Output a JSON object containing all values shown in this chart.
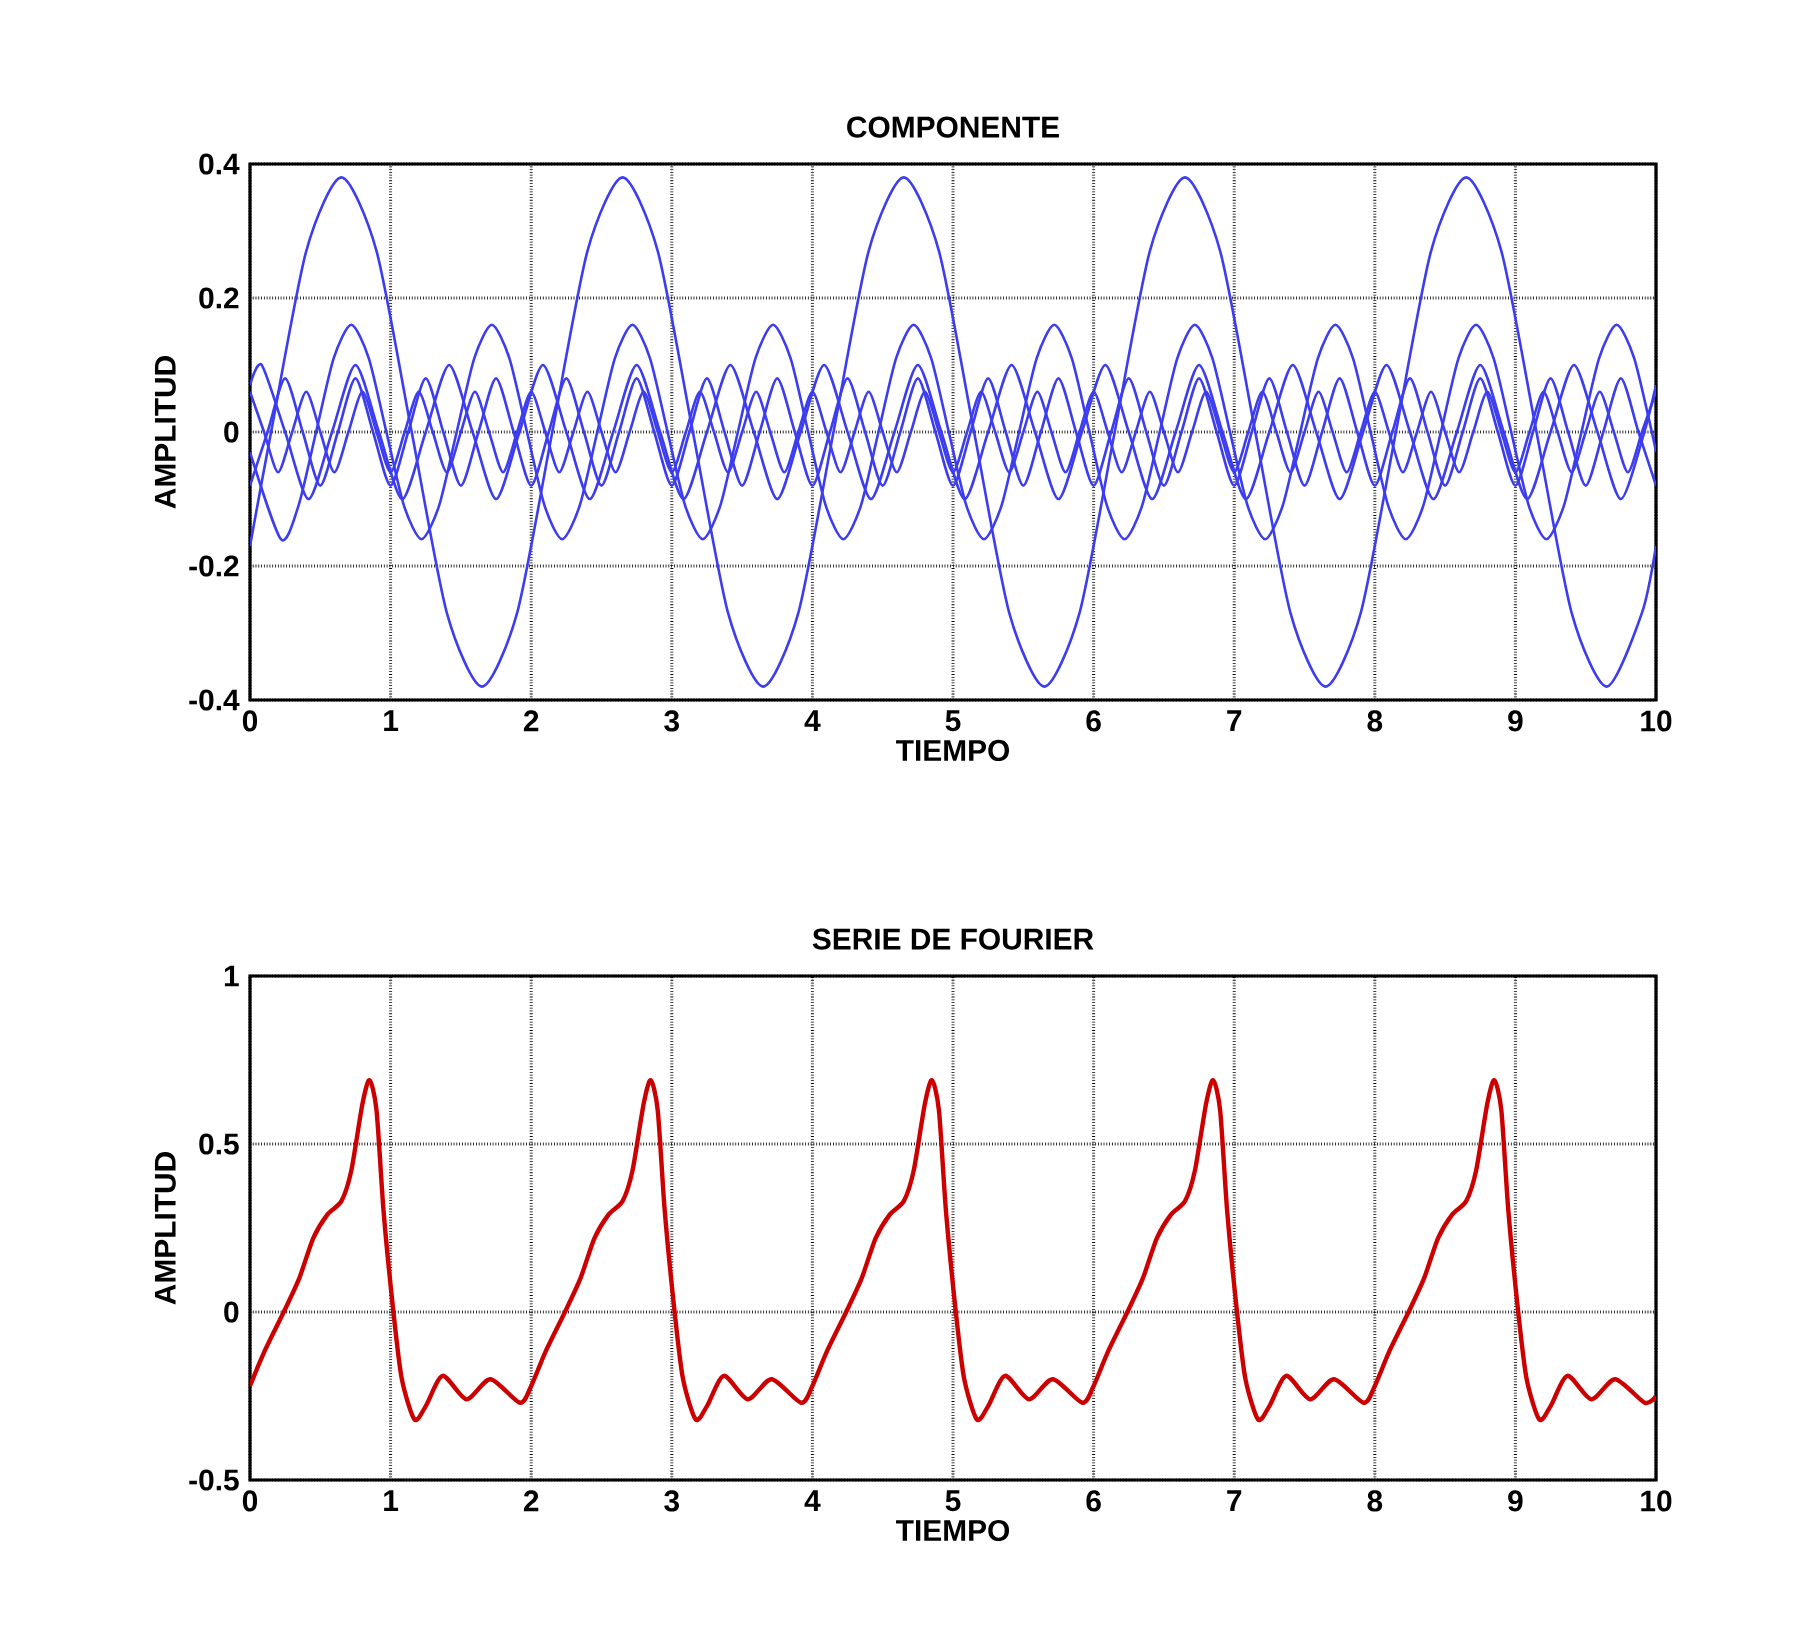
{
  "chart_data": [
    {
      "type": "line",
      "title": "COMPONENTE",
      "xlabel": "TIEMPO",
      "ylabel": "AMPLITUD",
      "xlim": [
        0,
        10
      ],
      "xticks": [
        0,
        1,
        2,
        3,
        4,
        5,
        6,
        7,
        8,
        9,
        10
      ],
      "ylim": [
        -0.4,
        0.4
      ],
      "yticks": [
        -0.4,
        -0.2,
        0,
        0.2,
        0.4
      ],
      "grid": true,
      "series": [
        {
          "color": "#3c3cf0",
          "x": [
            0,
            0.15,
            0.4,
            0.65,
            0.9,
            1.15,
            1.4,
            1.65,
            1.9,
            2.15,
            2.4,
            2.65,
            2.9,
            3.15,
            3.4,
            3.65,
            3.9,
            4.15,
            4.4,
            4.65,
            4.9,
            5.15,
            5.4,
            5.65,
            5.9,
            6.15,
            6.4,
            6.65,
            6.9,
            7.15,
            7.4,
            7.65,
            7.9,
            8.15,
            8.4,
            8.65,
            8.9,
            9.15,
            9.4,
            9.65,
            9.9,
            10
          ],
          "values": [
            -0.17,
            0,
            0.27,
            0.38,
            0.27,
            0,
            -0.27,
            -0.38,
            -0.27,
            0,
            0.27,
            0.38,
            0.27,
            0,
            -0.27,
            -0.38,
            -0.27,
            0,
            0.27,
            0.38,
            0.27,
            0,
            -0.27,
            -0.38,
            -0.27,
            0,
            0.27,
            0.38,
            0.27,
            0,
            -0.27,
            -0.38,
            -0.27,
            0,
            0.27,
            0.38,
            0.27,
            0,
            -0.27,
            -0.38,
            -0.27,
            -0.17
          ]
        },
        {
          "color": "#3c3cf0",
          "x": [
            0,
            0.22,
            0.345,
            0.47,
            0.595,
            0.72,
            0.845,
            0.97,
            1.095,
            1.22,
            1.345,
            1.47,
            1.595,
            1.72,
            1.845,
            1.97,
            2.095,
            2.22,
            2.345,
            2.47,
            2.595,
            2.72,
            2.845,
            2.97,
            3.095,
            3.22,
            3.345,
            3.47,
            3.595,
            3.72,
            3.845,
            3.97,
            4.095,
            4.22,
            4.345,
            4.47,
            4.595,
            4.72,
            4.845,
            4.97,
            5.095,
            5.22,
            5.345,
            5.47,
            5.595,
            5.72,
            5.845,
            5.97,
            6.095,
            6.22,
            6.345,
            6.47,
            6.595,
            6.72,
            6.845,
            6.97,
            7.095,
            7.22,
            7.345,
            7.47,
            7.595,
            7.72,
            7.845,
            7.97,
            8.095,
            8.22,
            8.345,
            8.47,
            8.595,
            8.72,
            8.845,
            8.97,
            9.095,
            9.22,
            9.345,
            9.47,
            9.595,
            9.72,
            9.845,
            9.97,
            10
          ],
          "values": [
            -0.03,
            -0.16,
            -0.11,
            0,
            0.11,
            0.16,
            0.11,
            0,
            -0.11,
            -0.16,
            -0.11,
            0,
            0.11,
            0.16,
            0.11,
            0,
            -0.11,
            -0.16,
            -0.11,
            0,
            0.11,
            0.16,
            0.11,
            0,
            -0.11,
            -0.16,
            -0.11,
            0,
            0.11,
            0.16,
            0.11,
            0,
            -0.11,
            -0.16,
            -0.11,
            0,
            0.11,
            0.16,
            0.11,
            0,
            -0.11,
            -0.16,
            -0.11,
            0,
            0.11,
            0.16,
            0.11,
            0,
            -0.11,
            -0.16,
            -0.11,
            0,
            0.11,
            0.16,
            0.11,
            0,
            -0.11,
            -0.16,
            -0.11,
            0,
            0.11,
            0.16,
            0.11,
            0,
            -0.11,
            -0.16,
            -0.11,
            0,
            0.11,
            0.16,
            0.11,
            0,
            -0.11,
            -0.16,
            -0.11,
            0,
            0.11,
            0.16,
            0.11,
            0,
            -0.03
          ]
        },
        {
          "color": "#3c3cf0",
          "x": [
            0,
            0.0833,
            0.25,
            0.4167,
            0.5833,
            0.75,
            0.9167,
            1.0833,
            1.25,
            1.4167,
            1.5833,
            1.75,
            1.9167,
            2.0833,
            2.25,
            2.4167,
            2.5833,
            2.75,
            2.9167,
            3.0833,
            3.25,
            3.4167,
            3.5833,
            3.75,
            3.9167,
            4.0833,
            4.25,
            4.4167,
            4.5833,
            4.75,
            4.9167,
            5.0833,
            5.25,
            5.4167,
            5.5833,
            5.75,
            5.9167,
            6.0833,
            6.25,
            6.4167,
            6.5833,
            6.75,
            6.9167,
            7.0833,
            7.25,
            7.4167,
            7.5833,
            7.75,
            7.9167,
            8.0833,
            8.25,
            8.4167,
            8.5833,
            8.75,
            8.9167,
            9.0833,
            9.25,
            9.4167,
            9.5833,
            9.75,
            9.9167,
            10
          ],
          "values": [
            0.07,
            0.1,
            0,
            -0.1,
            0,
            0.1,
            0,
            -0.1,
            0,
            0.1,
            0,
            -0.1,
            0,
            0.1,
            0,
            -0.1,
            0,
            0.1,
            0,
            -0.1,
            0,
            0.1,
            0,
            -0.1,
            0,
            0.1,
            0,
            -0.1,
            0,
            0.1,
            0,
            -0.1,
            0,
            0.1,
            0,
            -0.1,
            0,
            0.1,
            0,
            -0.1,
            0,
            0.1,
            0,
            -0.1,
            0,
            0.1,
            0,
            -0.1,
            0,
            0.1,
            0,
            -0.1,
            0,
            0.1,
            0,
            -0.1,
            0,
            0.1,
            0,
            -0.1,
            0,
            0.07
          ]
        },
        {
          "color": "#3c3cf0",
          "x": [
            0,
            0.125,
            0.25,
            0.375,
            0.5,
            0.625,
            0.75,
            0.875,
            1,
            1.125,
            1.25,
            1.375,
            1.5,
            1.625,
            1.75,
            1.875,
            2,
            2.125,
            2.25,
            2.375,
            2.5,
            2.625,
            2.75,
            2.875,
            3,
            3.125,
            3.25,
            3.375,
            3.5,
            3.625,
            3.75,
            3.875,
            4,
            4.125,
            4.25,
            4.375,
            4.5,
            4.625,
            4.75,
            4.875,
            5,
            5.125,
            5.25,
            5.375,
            5.5,
            5.625,
            5.75,
            5.875,
            6,
            6.125,
            6.25,
            6.375,
            6.5,
            6.625,
            6.75,
            6.875,
            7,
            7.125,
            7.25,
            7.375,
            7.5,
            7.625,
            7.75,
            7.875,
            8,
            8.125,
            8.25,
            8.375,
            8.5,
            8.625,
            8.75,
            8.875,
            9,
            9.125,
            9.25,
            9.375,
            9.5,
            9.625,
            9.75,
            9.875,
            10
          ],
          "values": [
            -0.08,
            0,
            0.08,
            0,
            -0.08,
            0,
            0.08,
            0,
            -0.08,
            0,
            0.08,
            0,
            -0.08,
            0,
            0.08,
            0,
            -0.08,
            0,
            0.08,
            0,
            -0.08,
            0,
            0.08,
            0,
            -0.08,
            0,
            0.08,
            0,
            -0.08,
            0,
            0.08,
            0,
            -0.08,
            0,
            0.08,
            0,
            -0.08,
            0,
            0.08,
            0,
            -0.08,
            0,
            0.08,
            0,
            -0.08,
            0,
            0.08,
            0,
            -0.08,
            0,
            0.08,
            0,
            -0.08,
            0,
            0.08,
            0,
            -0.08,
            0,
            0.08,
            0,
            -0.08,
            0,
            0.08,
            0,
            -0.08,
            0,
            0.08,
            0,
            -0.08,
            0,
            0.08,
            0,
            -0.08,
            0,
            0.08,
            0,
            -0.08,
            0,
            0.08,
            0,
            -0.08
          ]
        },
        {
          "color": "#3c3cf0",
          "x": [
            0,
            0.1,
            0.2,
            0.3,
            0.4,
            0.5,
            0.6,
            0.7,
            0.8,
            0.9,
            1,
            1.1,
            1.2,
            1.3,
            1.4,
            1.5,
            1.6,
            1.7,
            1.8,
            1.9,
            2,
            2.1,
            2.2,
            2.3,
            2.4,
            2.5,
            2.6,
            2.7,
            2.8,
            2.9,
            3,
            3.1,
            3.2,
            3.3,
            3.4,
            3.5,
            3.6,
            3.7,
            3.8,
            3.9,
            4,
            4.1,
            4.2,
            4.3,
            4.4,
            4.5,
            4.6,
            4.7,
            4.8,
            4.9,
            5,
            5.1,
            5.2,
            5.3,
            5.4,
            5.5,
            5.6,
            5.7,
            5.8,
            5.9,
            6,
            6.1,
            6.2,
            6.3,
            6.4,
            6.5,
            6.6,
            6.7,
            6.8,
            6.9,
            7,
            7.1,
            7.2,
            7.3,
            7.4,
            7.5,
            7.6,
            7.7,
            7.8,
            7.9,
            8,
            8.1,
            8.2,
            8.3,
            8.4,
            8.5,
            8.6,
            8.7,
            8.8,
            8.9,
            9,
            9.1,
            9.2,
            9.3,
            9.4,
            9.5,
            9.6,
            9.7,
            9.8,
            9.9,
            10
          ],
          "values": [
            0.06,
            0,
            -0.06,
            0,
            0.06,
            0,
            -0.06,
            0,
            0.06,
            0,
            -0.06,
            0,
            0.06,
            0,
            -0.06,
            0,
            0.06,
            0,
            -0.06,
            0,
            0.06,
            0,
            -0.06,
            0,
            0.06,
            0,
            -0.06,
            0,
            0.06,
            0,
            -0.06,
            0,
            0.06,
            0,
            -0.06,
            0,
            0.06,
            0,
            -0.06,
            0,
            0.06,
            0,
            -0.06,
            0,
            0.06,
            0,
            -0.06,
            0,
            0.06,
            0,
            -0.06,
            0,
            0.06,
            0,
            -0.06,
            0,
            0.06,
            0,
            -0.06,
            0,
            0.06,
            0,
            -0.06,
            0,
            0.06,
            0,
            -0.06,
            0,
            0.06,
            0,
            -0.06,
            0,
            0.06,
            0,
            -0.06,
            0,
            0.06,
            0,
            -0.06,
            0,
            0.06,
            0,
            -0.06,
            0,
            0.06,
            0,
            -0.06,
            0,
            0.06,
            0,
            -0.06,
            0,
            0.06,
            0,
            -0.06,
            0,
            0.06,
            0,
            -0.06,
            0,
            0.06
          ]
        }
      ]
    },
    {
      "type": "line",
      "title": "SERIE DE FOURIER",
      "xlabel": "TIEMPO",
      "ylabel": "AMPLITUD",
      "xlim": [
        0,
        10
      ],
      "xticks": [
        0,
        1,
        2,
        3,
        4,
        5,
        6,
        7,
        8,
        9,
        10
      ],
      "ylim": [
        -0.5,
        1
      ],
      "yticks": [
        -0.5,
        0,
        0.5,
        1
      ],
      "grid": true,
      "series": [
        {
          "color": "#cc0000",
          "x": [
            0,
            0.1,
            0.24,
            0.35,
            0.45,
            0.55,
            0.65,
            0.72,
            0.8,
            0.85,
            0.9,
            0.95,
            1.02,
            1.08,
            1.17,
            1.25,
            1.37,
            1.54,
            1.71,
            1.92,
            2,
            2.1,
            2.24,
            2.35,
            2.45,
            2.55,
            2.65,
            2.72,
            2.8,
            2.85,
            2.9,
            2.95,
            3.02,
            3.08,
            3.17,
            3.25,
            3.37,
            3.54,
            3.71,
            3.92,
            4,
            4.1,
            4.24,
            4.35,
            4.45,
            4.55,
            4.65,
            4.72,
            4.8,
            4.85,
            4.9,
            4.95,
            5.02,
            5.08,
            5.17,
            5.25,
            5.37,
            5.54,
            5.71,
            5.92,
            6,
            6.1,
            6.24,
            6.35,
            6.45,
            6.55,
            6.65,
            6.72,
            6.8,
            6.85,
            6.9,
            6.95,
            7.02,
            7.08,
            7.17,
            7.25,
            7.37,
            7.54,
            7.71,
            7.92,
            8,
            8.1,
            8.24,
            8.35,
            8.45,
            8.55,
            8.65,
            8.72,
            8.8,
            8.85,
            8.9,
            8.95,
            9.02,
            9.08,
            9.17,
            9.25,
            9.37,
            9.54,
            9.71,
            9.92,
            10
          ],
          "values": [
            -0.22,
            -0.12,
            0,
            0.1,
            0.22,
            0.29,
            0.33,
            0.42,
            0.62,
            0.69,
            0.6,
            0.3,
            0,
            -0.2,
            -0.32,
            -0.28,
            -0.19,
            -0.26,
            -0.2,
            -0.27,
            -0.22,
            -0.12,
            0,
            0.1,
            0.22,
            0.29,
            0.33,
            0.42,
            0.62,
            0.69,
            0.6,
            0.3,
            0,
            -0.2,
            -0.32,
            -0.28,
            -0.19,
            -0.26,
            -0.2,
            -0.27,
            -0.22,
            -0.12,
            0,
            0.1,
            0.22,
            0.29,
            0.33,
            0.42,
            0.62,
            0.69,
            0.6,
            0.3,
            0,
            -0.2,
            -0.32,
            -0.28,
            -0.19,
            -0.26,
            -0.2,
            -0.27,
            -0.22,
            -0.12,
            0,
            0.1,
            0.22,
            0.29,
            0.33,
            0.42,
            0.62,
            0.69,
            0.6,
            0.3,
            0,
            -0.2,
            -0.32,
            -0.28,
            -0.19,
            -0.26,
            -0.2,
            -0.27,
            -0.22,
            -0.12,
            0,
            0.1,
            0.22,
            0.29,
            0.33,
            0.42,
            0.62,
            0.69,
            0.6,
            0.3,
            0,
            -0.2,
            -0.32,
            -0.28,
            -0.19,
            -0.26,
            -0.2,
            -0.27,
            -0.25
          ]
        }
      ]
    }
  ]
}
